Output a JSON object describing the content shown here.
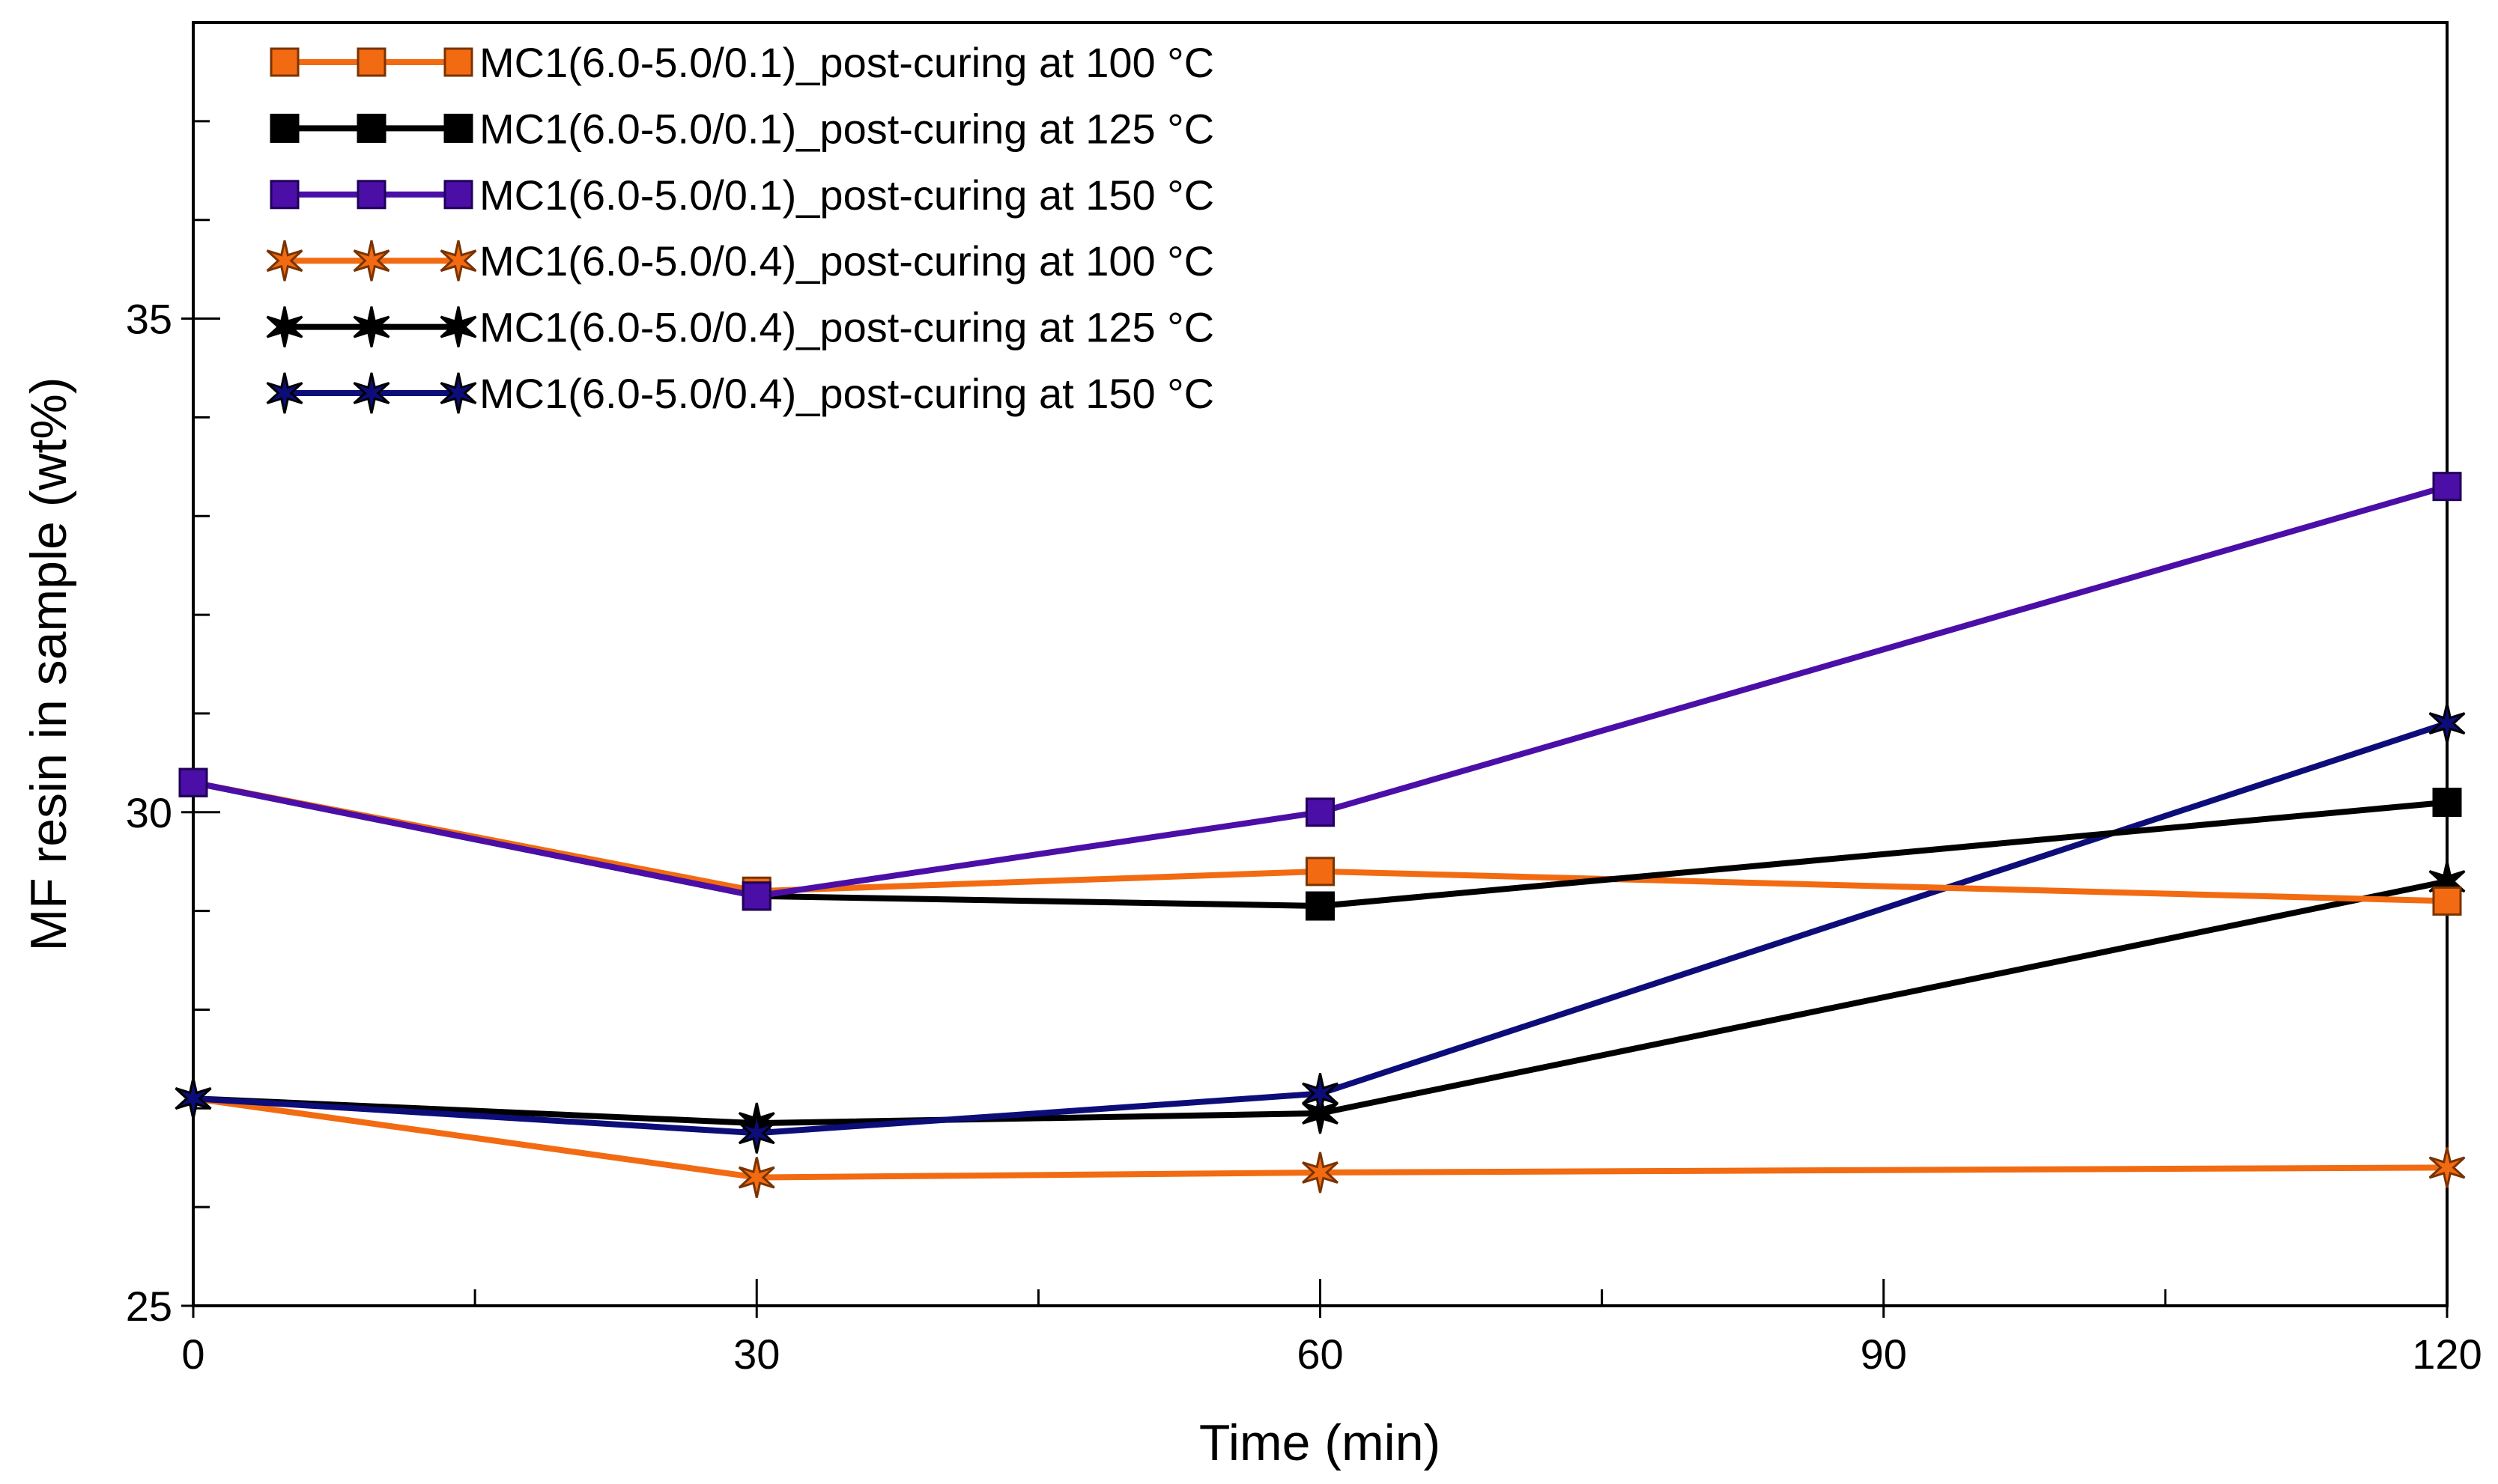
{
  "chart_data": {
    "type": "line",
    "xlabel": "Time (min)",
    "ylabel": "MF resin in sample (wt%)",
    "xlim": [
      0,
      120
    ],
    "ylim": [
      25,
      38
    ],
    "x_ticks": [
      0,
      30,
      60,
      90,
      120
    ],
    "y_ticks": [
      25,
      30,
      35
    ],
    "grid": false,
    "legend_position": "top-left",
    "x": [
      0,
      30,
      60,
      120
    ],
    "series": [
      {
        "name": "MC1(6.0-5.0/0.1)_post-curing at 100 °C",
        "marker": "square",
        "color": "#F26B12",
        "marker_edge": "#7a3300",
        "values": [
          30.3,
          29.2,
          29.4,
          29.1
        ]
      },
      {
        "name": "MC1(6.0-5.0/0.1)_post-curing at 125 °C",
        "marker": "square",
        "color": "#000000",
        "marker_edge": "#000000",
        "values": [
          30.3,
          29.15,
          29.05,
          30.1
        ]
      },
      {
        "name": "MC1(6.0-5.0/0.1)_post-curing at 150 °C",
        "marker": "square",
        "color": "#4B0FA8",
        "marker_edge": "#20005a",
        "values": [
          30.3,
          29.15,
          30.0,
          33.3
        ]
      },
      {
        "name": "MC1(6.0-5.0/0.4)_post-curing at 100 °C",
        "marker": "star",
        "color": "#F26B12",
        "marker_edge": "#7a3300",
        "values": [
          27.1,
          26.3,
          26.35,
          26.4
        ]
      },
      {
        "name": "MC1(6.0-5.0/0.4)_post-curing at 125 °C",
        "marker": "star",
        "color": "#000000",
        "marker_edge": "#000000",
        "values": [
          27.1,
          26.85,
          26.95,
          29.3
        ]
      },
      {
        "name": "MC1(6.0-5.0/0.4)_post-curing at 150 °C",
        "marker": "star",
        "color": "#0D0D7A",
        "marker_edge": "#000000",
        "values": [
          27.1,
          26.75,
          27.15,
          30.9
        ]
      }
    ]
  }
}
